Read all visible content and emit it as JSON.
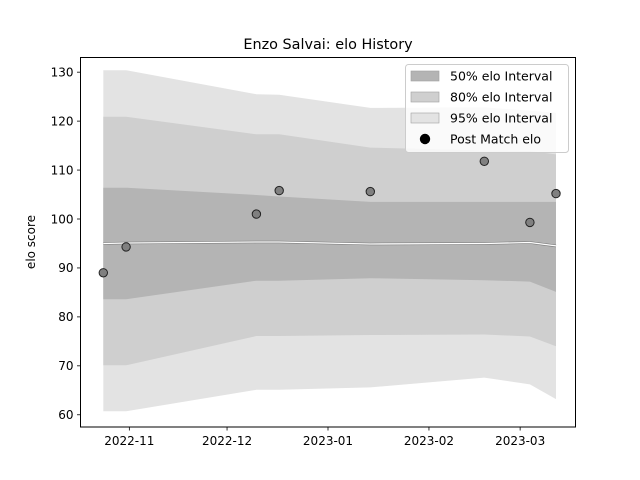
{
  "chart_data": {
    "type": "line",
    "title": "Enzo Salvai: elo History",
    "xlabel": "",
    "ylabel": "elo score",
    "ylim": [
      57.5,
      133
    ],
    "xlim": [
      "2022-10-17",
      "2023-03-18"
    ],
    "y_ticks": [
      60,
      70,
      80,
      90,
      100,
      110,
      120,
      130
    ],
    "x_ticks": [
      {
        "date": "2022-11-01",
        "label": "2022-11"
      },
      {
        "date": "2022-12-01",
        "label": "2022-12"
      },
      {
        "date": "2023-01-01",
        "label": "2023-01"
      },
      {
        "date": "2023-02-01",
        "label": "2023-02"
      },
      {
        "date": "2023-03-01",
        "label": "2023-03"
      }
    ],
    "grid": false,
    "legend_position": "top-right",
    "x": [
      "2022-10-24",
      "2022-10-31",
      "2022-12-10",
      "2022-12-17",
      "2023-01-14",
      "2023-02-18",
      "2023-03-04",
      "2023-03-12"
    ],
    "series": [
      {
        "name": "Post Match elo",
        "kind": "scatter",
        "values": [
          89.0,
          94.3,
          101.0,
          105.8,
          105.6,
          111.8,
          99.3,
          105.2
        ]
      },
      {
        "name": "",
        "kind": "line",
        "values": [
          95.0,
          95.1,
          95.3,
          95.3,
          94.9,
          95.0,
          95.2,
          94.5
        ]
      }
    ],
    "bands": [
      {
        "name": "95% elo Interval",
        "color": "#e3e3e3",
        "lower": [
          60.7,
          60.7,
          65.1,
          65.1,
          65.6,
          67.6,
          66.2,
          63.2
        ],
        "upper": [
          130.4,
          130.4,
          125.5,
          125.4,
          122.7,
          122.8,
          122.1,
          121.7
        ]
      },
      {
        "name": "80% elo Interval",
        "color": "#cfcfcf",
        "lower": [
          70.1,
          70.1,
          76.1,
          76.1,
          76.3,
          76.4,
          76.0,
          74.0
        ],
        "upper": [
          120.9,
          120.9,
          117.3,
          117.3,
          114.6,
          114.0,
          113.9,
          113.2
        ]
      },
      {
        "name": "50% elo Interval",
        "color": "#b4b4b4",
        "lower": [
          83.6,
          83.6,
          87.4,
          87.4,
          87.9,
          87.5,
          87.2,
          85.1
        ],
        "upper": [
          106.4,
          106.4,
          104.9,
          104.6,
          103.5,
          103.5,
          103.5,
          103.5
        ]
      }
    ],
    "legend": [
      {
        "label": "50% elo Interval",
        "color": "#b4b4b4",
        "kind": "band"
      },
      {
        "label": "80% elo Interval",
        "color": "#cfcfcf",
        "kind": "band"
      },
      {
        "label": "95% elo Interval",
        "color": "#e3e3e3",
        "kind": "band"
      },
      {
        "label": "Post Match elo",
        "color": "#000000",
        "kind": "marker"
      }
    ],
    "colors": {
      "marker_fill": "#808080",
      "marker_edge": "#222222",
      "mean_line": "#ffffff",
      "mean_line_edge": "#7f7f7f"
    }
  }
}
